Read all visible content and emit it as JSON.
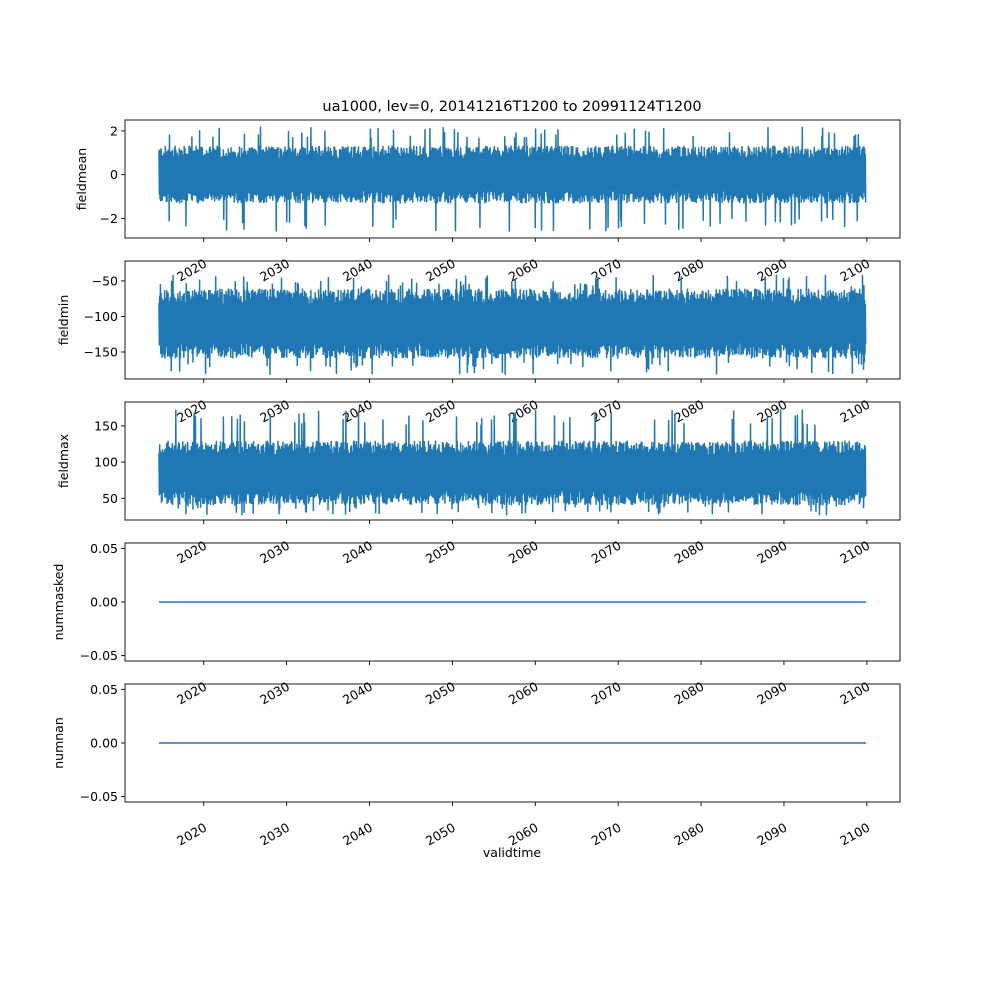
{
  "chart_data": {
    "type": "line",
    "title": "ua1000, lev=0, 20141216T1200 to 20991124T1200",
    "xlabel": "validtime",
    "x_range": [
      "2014-12-16",
      "2099-11-24"
    ],
    "xlim_years": [
      2010.5,
      2104.0
    ],
    "x_tick_labels": [
      "2020",
      "2030",
      "2040",
      "2050",
      "2060",
      "2070",
      "2080",
      "2090",
      "2100"
    ],
    "x_tick_years": [
      2020,
      2030,
      2040,
      2050,
      2060,
      2070,
      2080,
      2090,
      2100
    ],
    "line_color": "#1f77b4",
    "grid": false,
    "legend": "none",
    "panels": [
      {
        "id": "fieldmean",
        "ylabel": "fieldmean",
        "ylim": [
          -2.9,
          2.5
        ],
        "y_ticks": [
          -2,
          0,
          2
        ],
        "y_tick_labels": [
          "−2",
          "0",
          "2"
        ],
        "summary": {
          "center": 0.0,
          "typical_low": -1.3,
          "typical_high": 1.3,
          "min": -2.6,
          "max": 2.2
        }
      },
      {
        "id": "fieldmin",
        "ylabel": "fieldmin",
        "ylim": [
          -188,
          -22
        ],
        "y_ticks": [
          -150,
          -100,
          -50
        ],
        "y_tick_labels": [
          "−150",
          "−100",
          "−50"
        ],
        "summary": {
          "center": -110,
          "typical_low": -162,
          "typical_high": -65,
          "min": -182,
          "max": -42
        }
      },
      {
        "id": "fieldmax",
        "ylabel": "fieldmax",
        "ylim": [
          20,
          183
        ],
        "y_ticks": [
          50,
          100,
          150
        ],
        "y_tick_labels": [
          "50",
          "100",
          "150"
        ],
        "summary": {
          "center": 85,
          "typical_low": 42,
          "typical_high": 130,
          "min": 27,
          "max": 172
        }
      },
      {
        "id": "nummasked",
        "ylabel": "nummasked",
        "ylim": [
          -0.055,
          0.055
        ],
        "y_ticks": [
          -0.05,
          0.0,
          0.05
        ],
        "y_tick_labels": [
          "−0.05",
          "0.00",
          "0.05"
        ],
        "summary": {
          "constant": 0.0
        }
      },
      {
        "id": "numnan",
        "ylabel": "numnan",
        "ylim": [
          -0.055,
          0.055
        ],
        "y_ticks": [
          -0.05,
          0.0,
          0.05
        ],
        "y_tick_labels": [
          "−0.05",
          "0.00",
          "0.05"
        ],
        "summary": {
          "constant": 0.0
        }
      }
    ]
  }
}
